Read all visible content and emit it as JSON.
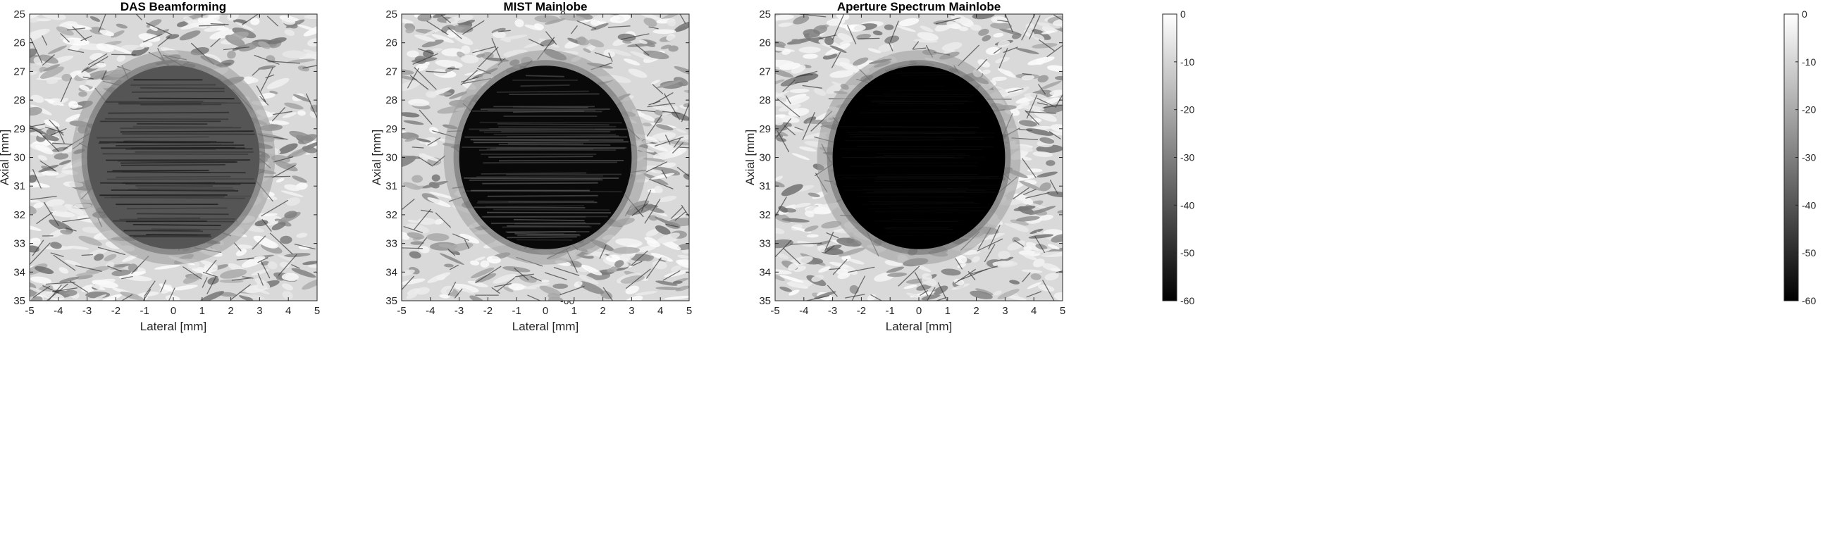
{
  "figure": {
    "colorbar_ticks": [
      0,
      -10,
      -20,
      -30,
      -40,
      -50,
      -60
    ]
  },
  "chart_data": [
    {
      "type": "heatmap",
      "title": "DAS Beamforming",
      "xlabel": "Lateral [mm]",
      "ylabel": "Axial [mm]",
      "xlim": [
        -5,
        5
      ],
      "ylim": [
        25,
        35
      ],
      "y_reversed": true,
      "x_ticks": [
        -5,
        -4,
        -3,
        -2,
        -1,
        0,
        1,
        2,
        3,
        4,
        5
      ],
      "y_ticks": [
        25,
        26,
        27,
        28,
        29,
        30,
        31,
        32,
        33,
        34,
        35
      ],
      "colormap": "gray",
      "clim": [
        -60,
        0
      ],
      "colorbar_ticks": [
        0,
        -10,
        -20,
        -30,
        -40,
        -50,
        -60
      ],
      "cyst": {
        "center_x": 0,
        "center_y": 30,
        "radius_x": 3,
        "radius_y": 3.2,
        "level_db": -40
      }
    },
    {
      "type": "heatmap",
      "title": "MIST Mainlobe",
      "xlabel": "Lateral [mm]",
      "ylabel": "Axial [mm]",
      "xlim": [
        -5,
        5
      ],
      "ylim": [
        25,
        35
      ],
      "y_reversed": true,
      "x_ticks": [
        -5,
        -4,
        -3,
        -2,
        -1,
        0,
        1,
        2,
        3,
        4,
        5
      ],
      "y_ticks": [
        25,
        26,
        27,
        28,
        29,
        30,
        31,
        32,
        33,
        34,
        35
      ],
      "colormap": "gray",
      "clim": [
        -60,
        0
      ],
      "colorbar_ticks": [
        0,
        -10,
        -20,
        -30,
        -40,
        -50,
        -60
      ],
      "cyst": {
        "center_x": 0,
        "center_y": 30,
        "radius_x": 3,
        "radius_y": 3.2,
        "level_db": -58
      }
    },
    {
      "type": "heatmap",
      "title": "Aperture Spectrum Mainlobe",
      "xlabel": "Lateral [mm]",
      "ylabel": "Axial [mm]",
      "xlim": [
        -5,
        5
      ],
      "ylim": [
        25,
        35
      ],
      "y_reversed": true,
      "x_ticks": [
        -5,
        -4,
        -3,
        -2,
        -1,
        0,
        1,
        2,
        3,
        4,
        5
      ],
      "y_ticks": [
        25,
        26,
        27,
        28,
        29,
        30,
        31,
        32,
        33,
        34,
        35
      ],
      "colormap": "gray",
      "clim": [
        -60,
        0
      ],
      "colorbar_ticks": [
        0,
        -10,
        -20,
        -30,
        -40,
        -50,
        -60
      ],
      "cyst": {
        "center_x": 0,
        "center_y": 30,
        "radius_x": 3,
        "radius_y": 3.2,
        "level_db": -60
      }
    }
  ]
}
